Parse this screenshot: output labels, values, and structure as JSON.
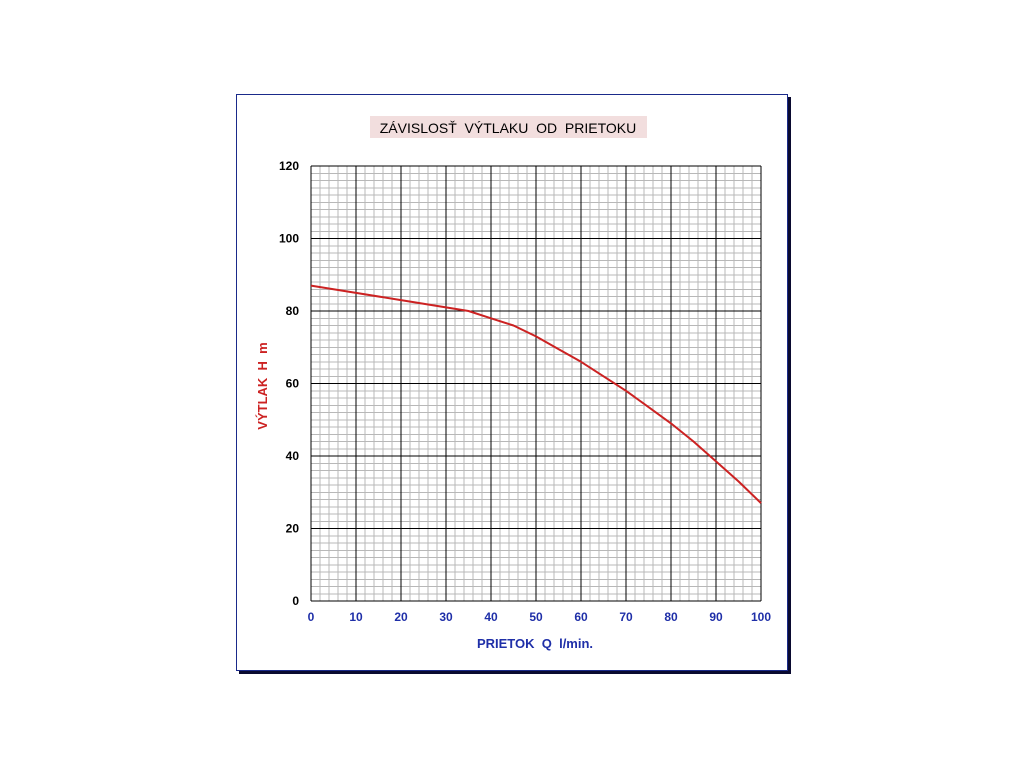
{
  "chart_data": {
    "type": "line",
    "title": "ZÁVISLOSŤ  VÝTLAKU  OD  PRIETOKU",
    "xlabel": "PRIETOK  Q  l/min.",
    "ylabel": "VÝTLAK  H  m",
    "xlim": [
      0,
      100
    ],
    "ylim": [
      0,
      120
    ],
    "xticks": [
      "0",
      "10",
      "20",
      "30",
      "40",
      "50",
      "60",
      "70",
      "80",
      "90",
      "100"
    ],
    "yticks": [
      "0",
      "20",
      "40",
      "60",
      "80",
      "100",
      "120"
    ],
    "grid": true,
    "series": [
      {
        "x": [
          0,
          10,
          20,
          30,
          35,
          40,
          45,
          50,
          55,
          60,
          65,
          70,
          75,
          80,
          85,
          90,
          95,
          100
        ],
        "y": [
          87,
          85,
          83,
          81,
          80,
          78,
          76,
          73,
          69.5,
          66,
          62,
          58,
          53.5,
          49,
          44,
          38.5,
          33,
          27
        ]
      }
    ]
  },
  "colors": {
    "line": "#cc2222",
    "title_bg": "#f2dede",
    "axis_label_x": "#1f2fa8",
    "axis_label_y": "#cc2222",
    "tick_x": "#1f2fa8",
    "tick_y": "#000000",
    "grid_major": "#000000",
    "grid_minor": "#b8b8b8"
  }
}
